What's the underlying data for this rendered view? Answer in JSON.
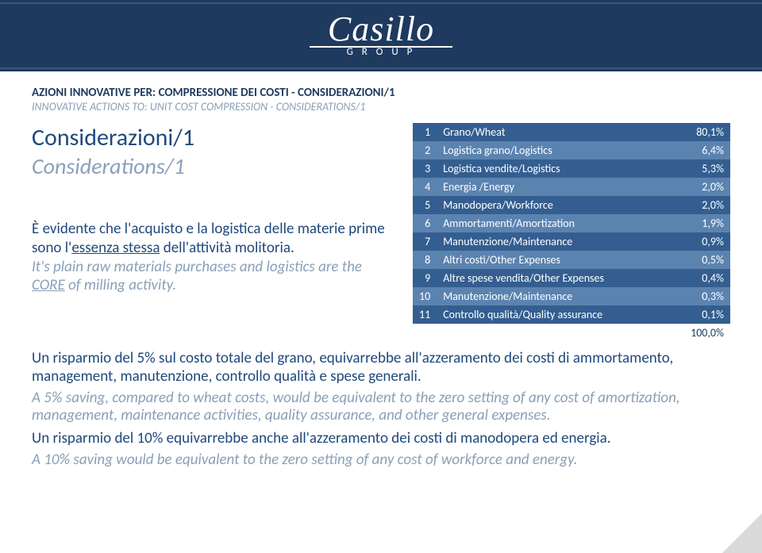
{
  "header": {
    "logo_text": "Casillo",
    "logo_sub": "G R O U P"
  },
  "section": {
    "title": "AZIONI INNOVATIVE PER:  COMPRESSIONE DEI COSTI - CONSIDERAZIONI/1",
    "subtitle": "INNOVATIVE ACTIONS TO: UNIT COST COMPRESSION - CONSIDERATIONS/1"
  },
  "heading": {
    "main": "Considerazioni/1",
    "sub": "Considerations/1"
  },
  "intro1a": "È evidente che l'acquisto e la logistica delle materie prime sono l'",
  "intro1b": "essenza stessa",
  "intro1c": " dell'attività molitoria.",
  "intro2a": "It's plain raw materials purchases and logistics are the ",
  "intro2b": "CORE",
  "intro2c": " of milling activity.",
  "table": {
    "rows": [
      {
        "n": "1",
        "label": "Grano/Wheat",
        "pct": "80,1%"
      },
      {
        "n": "2",
        "label": "Logistica grano/Logistics",
        "pct": "6,4%"
      },
      {
        "n": "3",
        "label": "Logistica vendite/Logistics",
        "pct": "5,3%"
      },
      {
        "n": "4",
        "label": "Energia /Energy",
        "pct": "2,0%"
      },
      {
        "n": "5",
        "label": "Manodopera/Workforce",
        "pct": "2,0%"
      },
      {
        "n": "6",
        "label": "Ammortamenti/Amortization",
        "pct": "1,9%"
      },
      {
        "n": "7",
        "label": "Manutenzione/Maintenance",
        "pct": "0,9%"
      },
      {
        "n": "8",
        "label": "Altri costi/Other Expenses",
        "pct": "0,5%"
      },
      {
        "n": "9",
        "label": "Altre spese vendita/Other Expenses",
        "pct": "0,4%"
      },
      {
        "n": "10",
        "label": "Manutenzione/Maintenance",
        "pct": "0,3%"
      },
      {
        "n": "11",
        "label": "Controllo qualità/Quality assurance",
        "pct": "0,1%"
      }
    ],
    "total": "100,0%",
    "colors": {
      "odd": "#345e90",
      "even": "#5b83b0"
    }
  },
  "body": {
    "p1": "Un risparmio del 5% sul costo totale del grano, equivarrebbe all'azzeramento dei costi di ammortamento, management, manutenzione, controllo qualità e spese generali.",
    "p2": "A 5% saving, compared to wheat costs, would be equivalent to the zero setting of any cost of amortization, management, maintenance activities, quality assurance, and other general expenses.",
    "p3": "Un risparmio del 10% equivarrebbe anche all'azzeramento dei costi di manodopera ed energia.",
    "p4": "A 10% saving would be equivalent to the zero setting of any cost of workforce and energy."
  }
}
